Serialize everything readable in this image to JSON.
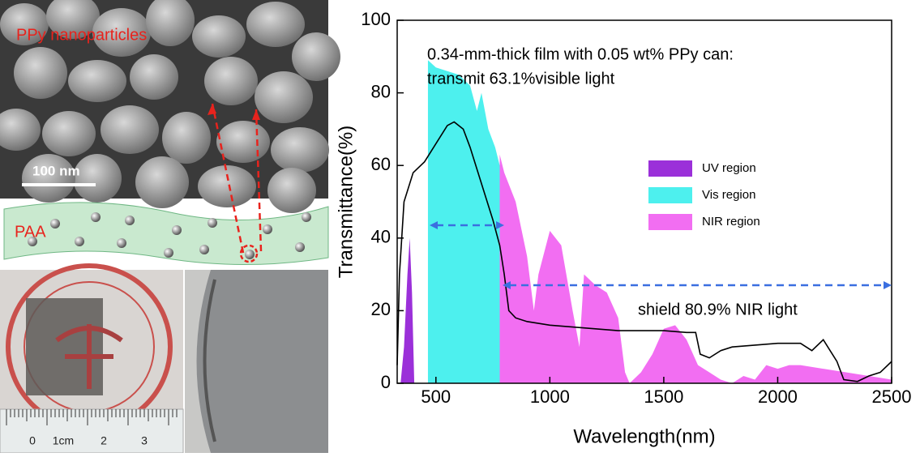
{
  "figure_labels": {
    "sem_label": "PPy nanoparticles",
    "scale_bar": "100 nm",
    "matrix_label": "PAA",
    "ruler_labels": [
      "0",
      "1cm",
      "2",
      "3"
    ]
  },
  "chart_data": {
    "type": "line",
    "xlabel": "Wavelength(nm)",
    "ylabel": "Transmittance(%)",
    "xlim": [
      330,
      2500
    ],
    "ylim": [
      0,
      100
    ],
    "xticks": [
      500,
      1000,
      1500,
      2000,
      2500
    ],
    "yticks": [
      0,
      20,
      40,
      60,
      80,
      100
    ],
    "annotations": [
      "0.34-mm-thick film with 0.05 wt% PPy can:",
      "transmit 63.1%visible light",
      "shield 80.9% NIR light"
    ],
    "series": [
      {
        "name": "UV region",
        "color": "#9b30d9",
        "style": "area",
        "x": [
          345,
          360,
          375,
          385,
          395,
          405
        ],
        "values": [
          0,
          10,
          30,
          40,
          25,
          0
        ]
      },
      {
        "name": "Vis region",
        "color": "#4df0ee",
        "style": "area",
        "x": [
          465,
          500,
          550,
          600,
          650,
          680,
          700,
          730,
          760,
          780
        ],
        "values": [
          89,
          87,
          86,
          85,
          82,
          75,
          80,
          70,
          65,
          60
        ]
      },
      {
        "name": "NIR region",
        "color": "#f26ef2",
        "style": "area",
        "x": [
          780,
          800,
          850,
          900,
          930,
          950,
          1000,
          1050,
          1100,
          1130,
          1150,
          1200,
          1250,
          1300,
          1330,
          1350,
          1400,
          1450,
          1500,
          1550,
          1600,
          1650,
          1700,
          1750,
          1800,
          1850,
          1900,
          1950,
          2000,
          2050,
          2100,
          2200,
          2300,
          2400,
          2500
        ],
        "values": [
          63,
          58,
          50,
          35,
          20,
          30,
          42,
          38,
          20,
          10,
          30,
          27,
          25,
          18,
          3,
          0,
          3,
          8,
          15,
          16,
          12,
          5,
          3,
          1,
          0,
          2,
          1,
          5,
          4,
          5,
          5,
          4,
          3,
          2,
          1
        ]
      },
      {
        "color": "#000000",
        "style": "line",
        "x": [
          330,
          340,
          360,
          400,
          450,
          500,
          550,
          580,
          620,
          650,
          700,
          750,
          780,
          800,
          820,
          850,
          900,
          1000,
          1100,
          1200,
          1300,
          1400,
          1500,
          1600,
          1640,
          1660,
          1700,
          1750,
          1800,
          2000,
          2100,
          2150,
          2200,
          2230,
          2260,
          2290,
          2350,
          2400,
          2450,
          2500
        ],
        "values": [
          5,
          30,
          50,
          58,
          61,
          66,
          71,
          72,
          70,
          65,
          55,
          45,
          38,
          30,
          20,
          18,
          17,
          16,
          15.5,
          15,
          14.5,
          14.5,
          14.5,
          14,
          14,
          8,
          7,
          9,
          10,
          11,
          11,
          9,
          12,
          9,
          6,
          1,
          0.5,
          2,
          3,
          6
        ]
      }
    ]
  }
}
